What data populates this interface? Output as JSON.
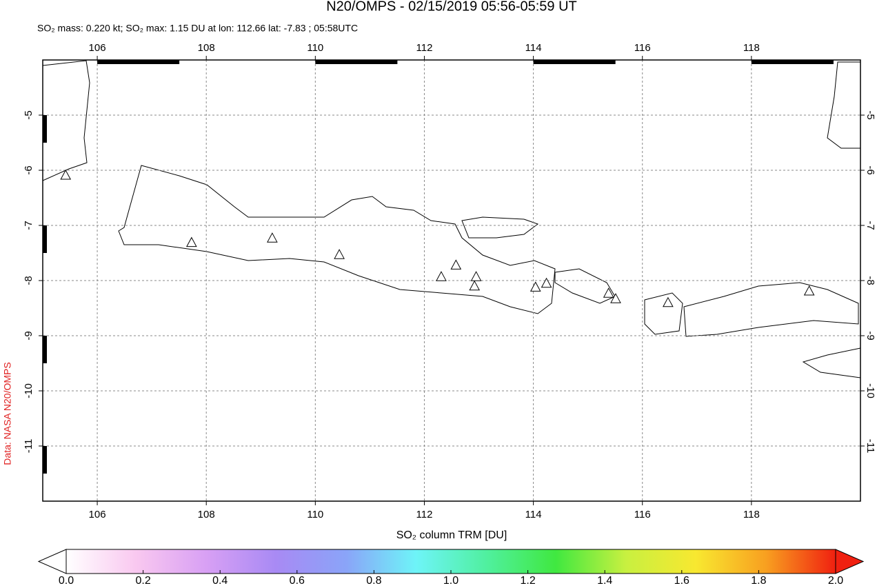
{
  "chart_data": {
    "type": "map",
    "title": "N20/OMPS - 02/15/2019 05:56-05:59 UT",
    "subtitle": "SO₂ mass: 0.220 kt; SO₂ max: 1.15 DU at lon: 112.66 lat: -7.83 ; 05:58UTC",
    "credit": "Data: NASA N20/OMPS",
    "xlim": [
      105,
      120
    ],
    "ylim": [
      -12,
      -4
    ],
    "xticks": [
      106,
      108,
      110,
      112,
      114,
      116,
      118
    ],
    "yticks": [
      -5,
      -6,
      -7,
      -8,
      -9,
      -10,
      -11
    ],
    "grid": true,
    "volcanoes": {
      "lon": [
        105.42,
        107.73,
        109.21,
        110.44,
        112.31,
        112.58,
        112.95,
        112.92,
        114.04,
        114.24,
        115.38,
        115.51,
        116.47,
        119.06
      ],
      "lat": [
        -6.1,
        -7.32,
        -7.24,
        -7.54,
        -7.94,
        -7.73,
        -7.94,
        -8.11,
        -8.13,
        -8.06,
        -8.24,
        -8.34,
        -8.41,
        -8.2
      ]
    },
    "colorbar": {
      "label": "SO₂ column TRM [DU]",
      "range": [
        0,
        2
      ],
      "ticks": [
        {
          "value": 0,
          "label": "0.0"
        },
        {
          "value": 0.2,
          "label": "0.2"
        },
        {
          "value": 0.4,
          "label": "0.4"
        },
        {
          "value": 0.6,
          "label": "0.6"
        },
        {
          "value": 0.8,
          "label": "0.8"
        },
        {
          "value": 1,
          "label": "1.0"
        },
        {
          "value": 1.2,
          "label": "1.2"
        },
        {
          "value": 1.4,
          "label": "1.4"
        },
        {
          "value": 1.6,
          "label": "1.6"
        },
        {
          "value": 1.8,
          "label": "1.8"
        },
        {
          "value": 2,
          "label": "2.0"
        }
      ],
      "colors": [
        "#ffffff",
        "#f9c8f0",
        "#d8a0f4",
        "#a88af4",
        "#8aa4f8",
        "#6ef4f8",
        "#50f0a0",
        "#40e840",
        "#c8f040",
        "#f8e830",
        "#f8a020",
        "#f02010"
      ]
    }
  }
}
